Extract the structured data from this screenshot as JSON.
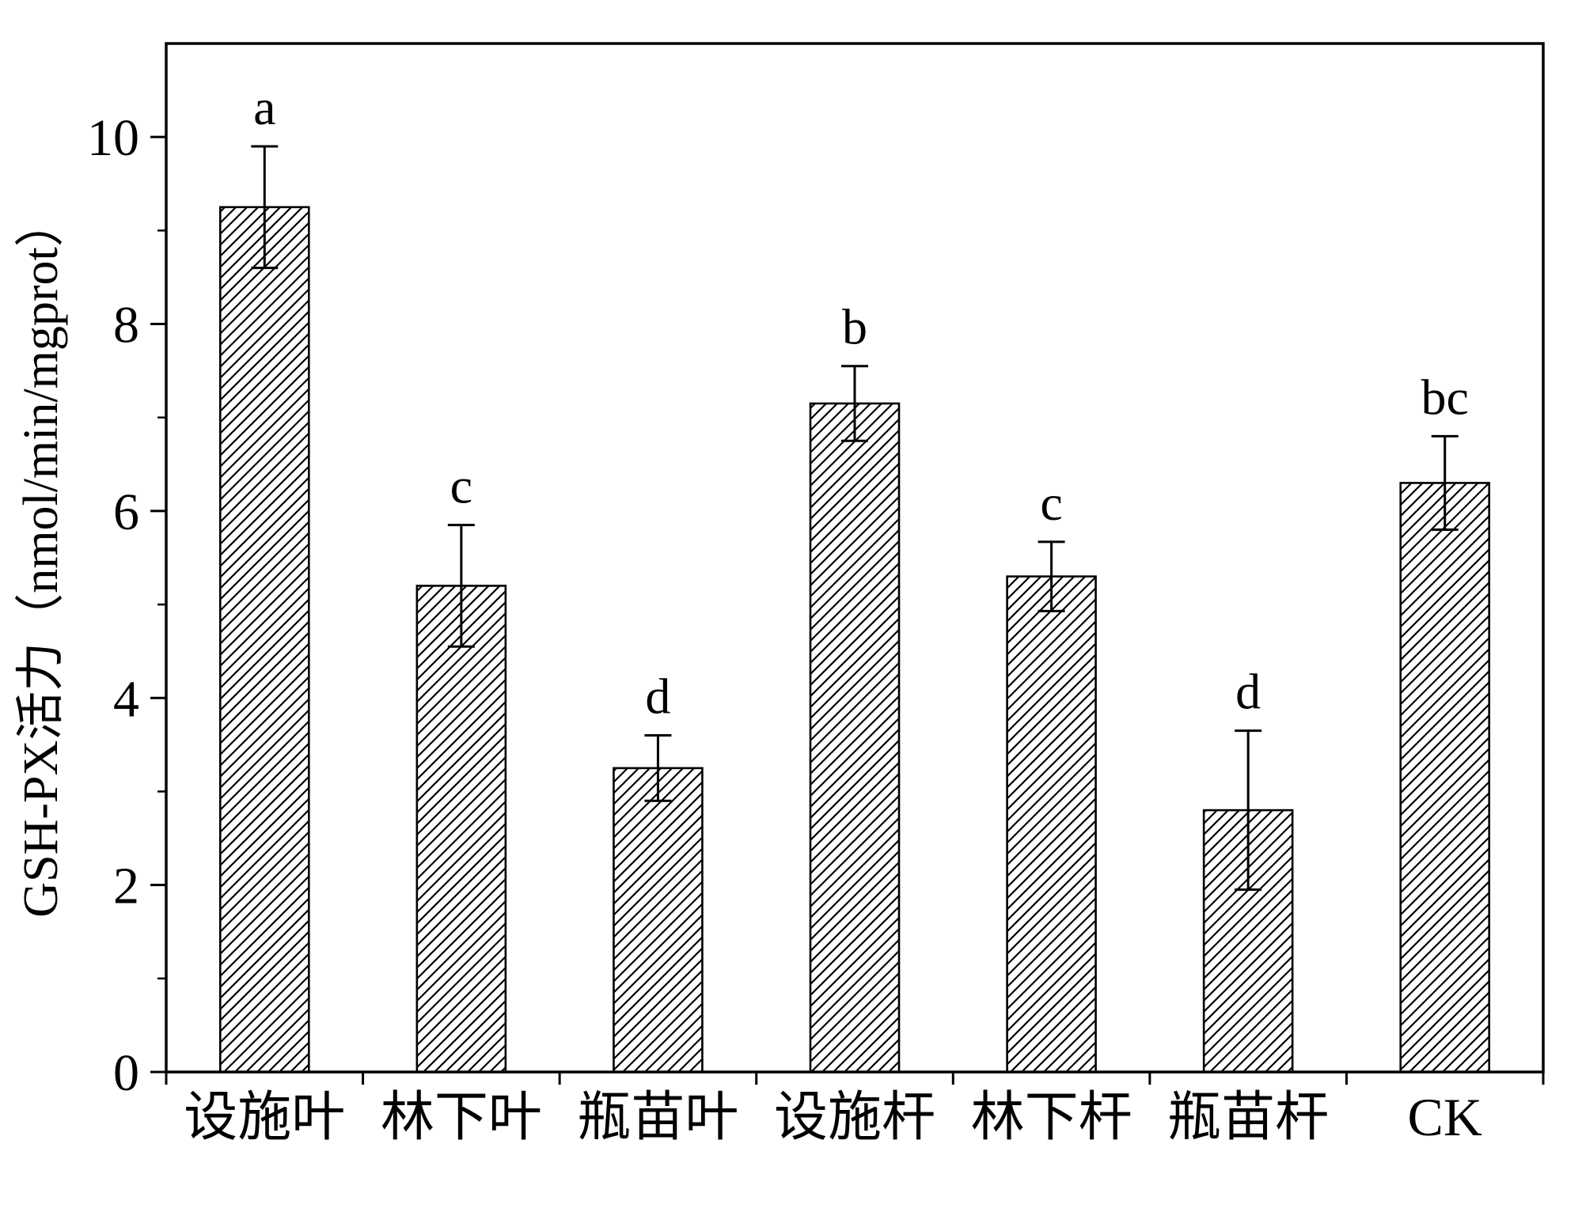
{
  "figure": {
    "title": ""
  },
  "chart_data": {
    "type": "bar",
    "title": "",
    "xlabel": "",
    "ylabel": "GSH-PX活力（nmol/min/mgprot）",
    "ylim": [
      0,
      11
    ],
    "yticks_major": [
      0,
      2,
      4,
      6,
      8,
      10
    ],
    "yticks_minor": [
      1,
      3,
      5,
      7,
      9
    ],
    "categories": [
      "设施叶",
      "林下叶",
      "瓶苗叶",
      "设施杆",
      "林下杆",
      "瓶苗杆",
      "CK"
    ],
    "values": [
      9.25,
      5.2,
      3.25,
      7.15,
      5.3,
      2.8,
      6.3
    ],
    "errors": [
      0.65,
      0.65,
      0.35,
      0.4,
      0.37,
      0.85,
      0.5
    ],
    "sig_letters": [
      "a",
      "c",
      "d",
      "b",
      "c",
      "d",
      "bc"
    ],
    "legend": "none",
    "grid": "off",
    "style": {
      "bar_fill": "#ffffff",
      "hatch_color": "#000000",
      "axis_color": "#000000",
      "background": "#ffffff",
      "hatch_pattern": "diagonal-forward"
    }
  }
}
